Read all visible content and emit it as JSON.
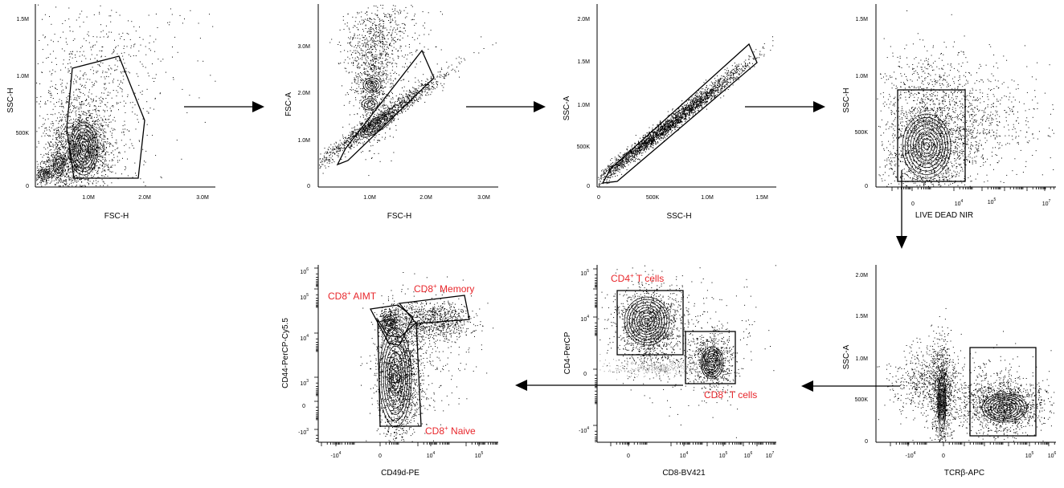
{
  "panels": [
    {
      "id": "p1",
      "xlabel": "FSC-H",
      "ylabel": "SSC-H",
      "xticks": [
        "1.0M",
        "2.0M",
        "3.0M"
      ],
      "yticks": [
        "0",
        "500K",
        "1.0M",
        "1.5M"
      ],
      "gates": []
    },
    {
      "id": "p2",
      "xlabel": "FSC-H",
      "ylabel": "FSC-A",
      "xticks": [
        "1.0M",
        "2.0M",
        "3.0M"
      ],
      "yticks": [
        "0",
        "1.0M",
        "2.0M",
        "3.0M"
      ],
      "gates": []
    },
    {
      "id": "p3",
      "xlabel": "SSC-H",
      "ylabel": "SSC-A",
      "xticks": [
        "0",
        "500K",
        "1.0M",
        "1.5M"
      ],
      "yticks": [
        "0",
        "500K",
        "1.0M",
        "1.5M",
        "2.0M"
      ],
      "gates": []
    },
    {
      "id": "p4",
      "xlabel": "LIVE DEAD NIR",
      "ylabel": "SSC-H",
      "xticks": [
        "0",
        "10",
        "10",
        "10"
      ],
      "xtick_exps": [
        "",
        "4",
        "5",
        "7"
      ],
      "yticks": [
        "0",
        "500K",
        "1.0M",
        "1.5M"
      ],
      "gates": []
    },
    {
      "id": "p5",
      "xlabel": "TCRβ-APC",
      "ylabel": "SSC-A",
      "xticks": [
        "-10",
        "0",
        "10",
        "10"
      ],
      "xtick_exps": [
        "4",
        "",
        "5",
        "6"
      ],
      "yticks": [
        "0",
        "500K",
        "1.0M",
        "1.5M",
        "2.0M"
      ],
      "gates": []
    },
    {
      "id": "p6",
      "xlabel": "CD8-BV421",
      "ylabel": "CD4-PerCP",
      "xticks": [
        "0",
        "10",
        "10",
        "10",
        "10"
      ],
      "xtick_exps": [
        "",
        "4",
        "5",
        "6",
        "7"
      ],
      "yticks": [
        "-10",
        "0",
        "10",
        "10"
      ],
      "ytick_exps": [
        "4",
        "",
        "4",
        "5"
      ],
      "gates": [
        {
          "base": "CD4",
          "sup": "+",
          "rest": " T cells"
        },
        {
          "base": "CD8",
          "sup": "+",
          "rest": " T cells"
        }
      ]
    },
    {
      "id": "p7",
      "xlabel": "CD49d-PE",
      "ylabel": "CD44-PerCP-Cy5.5",
      "xticks": [
        "-10",
        "0",
        "10",
        "10"
      ],
      "xtick_exps": [
        "4",
        "",
        "4",
        "5"
      ],
      "yticks": [
        "-10",
        "0",
        "10",
        "10",
        "10",
        "10",
        "10"
      ],
      "ytick_exps": [
        "3",
        "",
        "3",
        "4",
        "5",
        "6",
        ""
      ],
      "gates": [
        {
          "base": "CD8",
          "sup": "+",
          "rest": " AIMT"
        },
        {
          "base": "CD8",
          "sup": "+",
          "rest": " Memory"
        },
        {
          "base": "CD8",
          "sup": "+",
          "rest": " Naive"
        }
      ]
    }
  ],
  "colors": {
    "gate_label": "#e8262b",
    "ink": "#000000",
    "ungated_events": "#9a9a9a"
  }
}
